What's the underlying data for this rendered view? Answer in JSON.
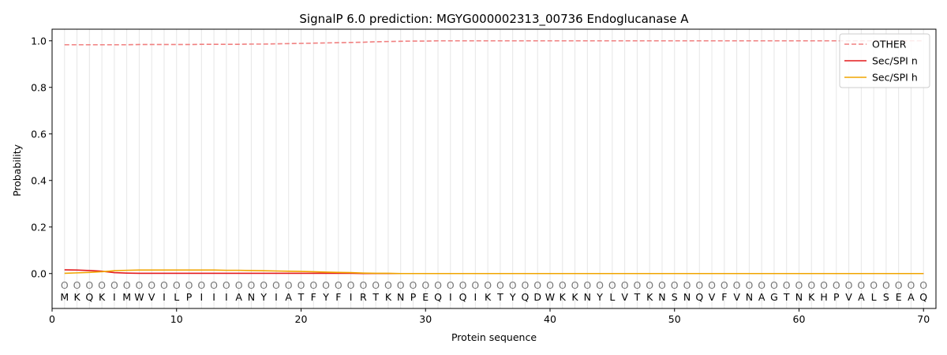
{
  "chart_data": {
    "type": "line",
    "title": "SignalP 6.0 prediction: MGYG000002313_00736 Endoglucanase A",
    "xlabel": "Protein sequence",
    "ylabel": "Probability",
    "xlim": [
      0,
      71
    ],
    "ylim": [
      -0.15,
      1.05
    ],
    "xticks": [
      0,
      10,
      20,
      30,
      40,
      50,
      60,
      70
    ],
    "yticks": [
      0.0,
      0.2,
      0.4,
      0.6,
      0.8,
      1.0
    ],
    "xtick_labels": [
      "0",
      "10",
      "20",
      "30",
      "40",
      "50",
      "60",
      "70"
    ],
    "ytick_labels": [
      "0.0",
      "0.2",
      "0.4",
      "0.6",
      "0.8",
      "1.0"
    ],
    "grid": "vertical lines at each residue",
    "legend_position": "top-right",
    "sequence": [
      "M",
      "K",
      "Q",
      "K",
      "I",
      "M",
      "W",
      "V",
      "I",
      "L",
      "P",
      "I",
      "I",
      "I",
      "A",
      "N",
      "Y",
      "I",
      "A",
      "T",
      "F",
      "Y",
      "F",
      "I",
      "R",
      "T",
      "K",
      "N",
      "P",
      "E",
      "Q",
      "I",
      "Q",
      "I",
      "K",
      "T",
      "Y",
      "Q",
      "D",
      "W",
      "K",
      "K",
      "N",
      "Y",
      "L",
      "V",
      "T",
      "K",
      "N",
      "S",
      "N",
      "Q",
      "V",
      "F",
      "V",
      "N",
      "A",
      "G",
      "T",
      "N",
      "K",
      "H",
      "P",
      "V",
      "A",
      "L",
      "S",
      "E",
      "A",
      "Q"
    ],
    "annotation": [
      "O",
      "O",
      "O",
      "O",
      "O",
      "O",
      "O",
      "O",
      "O",
      "O",
      "O",
      "O",
      "O",
      "O",
      "O",
      "O",
      "O",
      "O",
      "O",
      "O",
      "O",
      "O",
      "O",
      "O",
      "O",
      "O",
      "O",
      "O",
      "O",
      "O",
      "O",
      "O",
      "O",
      "O",
      "O",
      "O",
      "O",
      "O",
      "O",
      "O",
      "O",
      "O",
      "O",
      "O",
      "O",
      "O",
      "O",
      "O",
      "O",
      "O",
      "O",
      "O",
      "O",
      "O",
      "O",
      "O",
      "O",
      "O",
      "O",
      "O",
      "O",
      "O",
      "O",
      "O",
      "O",
      "O",
      "O",
      "O",
      "O",
      "O"
    ],
    "series": [
      {
        "name": "OTHER",
        "color": "#f08080",
        "style": "dashed",
        "values": [
          0.983,
          0.983,
          0.983,
          0.983,
          0.983,
          0.983,
          0.984,
          0.984,
          0.984,
          0.984,
          0.984,
          0.985,
          0.985,
          0.985,
          0.985,
          0.986,
          0.986,
          0.987,
          0.988,
          0.989,
          0.99,
          0.991,
          0.992,
          0.993,
          0.994,
          0.996,
          0.997,
          0.998,
          0.999,
          0.999,
          1.0,
          1.0,
          1.0,
          1.0,
          1.0,
          1.0,
          1.0,
          1.0,
          1.0,
          1.0,
          1.0,
          1.0,
          1.0,
          1.0,
          1.0,
          1.0,
          1.0,
          1.0,
          1.0,
          1.0,
          1.0,
          1.0,
          1.0,
          1.0,
          1.0,
          1.0,
          1.0,
          1.0,
          1.0,
          1.0,
          1.0,
          1.0,
          1.0,
          1.0,
          1.0,
          1.0,
          1.0,
          1.0,
          1.0,
          1.0
        ]
      },
      {
        "name": "Sec/SPI n",
        "color": "#e31a1c",
        "style": "solid",
        "values": [
          0.016,
          0.015,
          0.013,
          0.01,
          0.004,
          0.002,
          0.001,
          0.001,
          0.001,
          0.001,
          0.001,
          0.001,
          0.001,
          0.001,
          0.001,
          0.001,
          0.001,
          0.001,
          0.001,
          0.001,
          0.001,
          0.001,
          0.001,
          0.001,
          0.0,
          0.0,
          0.0,
          0.0,
          0.0,
          0.0,
          0.0,
          0.0,
          0.0,
          0.0,
          0.0,
          0.0,
          0.0,
          0.0,
          0.0,
          0.0,
          0.0,
          0.0,
          0.0,
          0.0,
          0.0,
          0.0,
          0.0,
          0.0,
          0.0,
          0.0,
          0.0,
          0.0,
          0.0,
          0.0,
          0.0,
          0.0,
          0.0,
          0.0,
          0.0,
          0.0,
          0.0,
          0.0,
          0.0,
          0.0,
          0.0,
          0.0,
          0.0,
          0.0,
          0.0,
          0.0
        ]
      },
      {
        "name": "Sec/SPI h",
        "color": "#f0a500",
        "style": "solid",
        "values": [
          0.001,
          0.003,
          0.005,
          0.008,
          0.012,
          0.014,
          0.015,
          0.015,
          0.015,
          0.015,
          0.015,
          0.015,
          0.015,
          0.014,
          0.014,
          0.013,
          0.012,
          0.011,
          0.01,
          0.009,
          0.008,
          0.006,
          0.005,
          0.004,
          0.002,
          0.001,
          0.001,
          0.0,
          0.0,
          0.0,
          0.0,
          0.0,
          0.0,
          0.0,
          0.0,
          0.0,
          0.0,
          0.0,
          0.0,
          0.0,
          0.0,
          0.0,
          0.0,
          0.0,
          0.0,
          0.0,
          0.0,
          0.0,
          0.0,
          0.0,
          0.0,
          0.0,
          0.0,
          0.0,
          0.0,
          0.0,
          0.0,
          0.0,
          0.0,
          0.0,
          0.0,
          0.0,
          0.0,
          0.0,
          0.0,
          0.0,
          0.0,
          0.0,
          0.0,
          0.0
        ]
      }
    ]
  }
}
